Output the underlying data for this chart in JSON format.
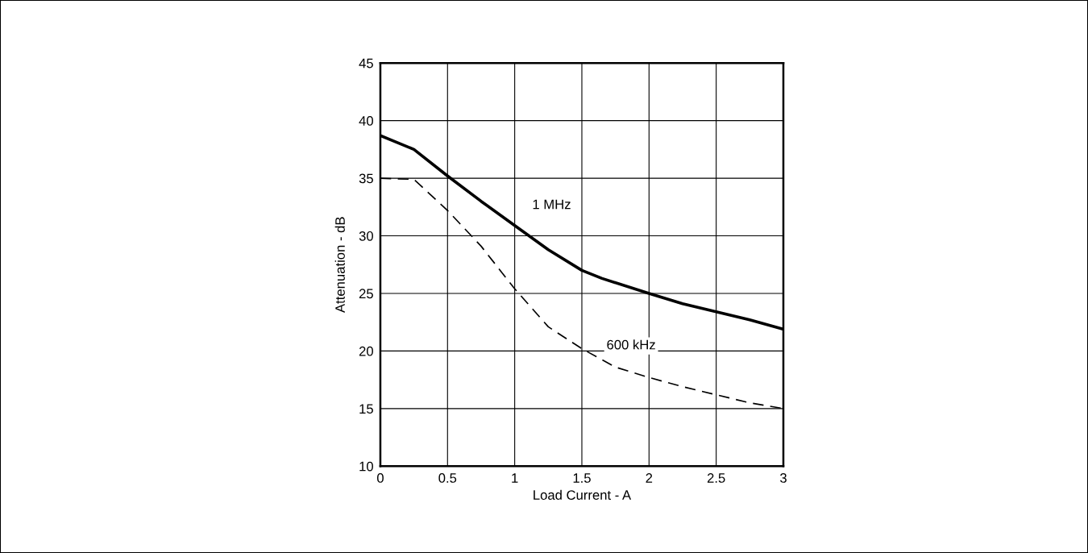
{
  "chart_data": {
    "type": "line",
    "xlabel": "Load Current - A",
    "ylabel": "Attenuation - dB",
    "xlim": [
      0,
      3
    ],
    "ylim": [
      10,
      45
    ],
    "xticks": [
      0,
      0.5,
      1,
      1.5,
      2,
      2.5,
      3
    ],
    "yticks": [
      10,
      15,
      20,
      25,
      30,
      35,
      40,
      45
    ],
    "grid": true,
    "marker": "none",
    "x": [
      0,
      0.25,
      0.5,
      0.75,
      1,
      1.25,
      1.5,
      1.65,
      2,
      2.25,
      2.5,
      2.75,
      3
    ],
    "series": [
      {
        "name": "1 MHz",
        "color": "#000000",
        "line_style": "solid",
        "values": [
          38.7,
          37.5,
          35.2,
          33.0,
          30.9,
          28.8,
          27.0,
          26.3,
          25.0,
          24.1,
          23.4,
          22.7,
          21.9
        ]
      },
      {
        "name": "600 kHz",
        "color": "#000000",
        "line_style": "dashed",
        "x": [
          0,
          0.25,
          0.5,
          0.75,
          1,
          1.25,
          1.5,
          1.75,
          2,
          2.25,
          2.5,
          2.75,
          3
        ],
        "values": [
          35.0,
          34.9,
          32.2,
          29.1,
          25.4,
          22.1,
          20.2,
          18.6,
          17.7,
          16.9,
          16.2,
          15.5,
          15.0
        ]
      }
    ]
  }
}
